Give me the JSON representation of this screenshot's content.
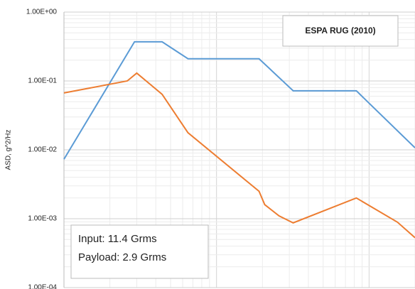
{
  "chart_data": {
    "type": "line",
    "title": "ESPA RUG (2010)",
    "y_label": "ASD, g^2/Hz",
    "annotations": [
      "Input: 11.4 Grms",
      "Payload: 2.9 Grms"
    ],
    "xscale": "log",
    "yscale": "log",
    "grid": true,
    "xlim": [
      10,
      2000
    ],
    "ylim": [
      0.0001,
      1
    ],
    "yticks": [
      {
        "value": 1,
        "label": "1.00E+00"
      },
      {
        "value": 0.1,
        "label": "1.00E-01"
      },
      {
        "value": 0.01,
        "label": "1.00E-02"
      },
      {
        "value": 0.001,
        "label": "1.00E-03"
      },
      {
        "value": 0.0001,
        "label": "1.00E-04"
      }
    ],
    "series": [
      {
        "color": "#5b9bd5",
        "x": [
          10,
          29,
          44,
          65,
          190,
          318,
          825,
          2000
        ],
        "values": [
          0.0073,
          0.37,
          0.37,
          0.21,
          0.21,
          0.072,
          0.072,
          0.0107
        ]
      },
      {
        "color": "#ed7d31",
        "x": [
          10,
          26,
          30,
          44,
          65,
          190,
          207,
          257,
          318,
          825,
          1535,
          2000
        ],
        "values": [
          0.067,
          0.1,
          0.13,
          0.064,
          0.0177,
          0.0025,
          0.0016,
          0.0011,
          0.00087,
          0.002,
          0.00089,
          0.00053
        ]
      }
    ]
  }
}
